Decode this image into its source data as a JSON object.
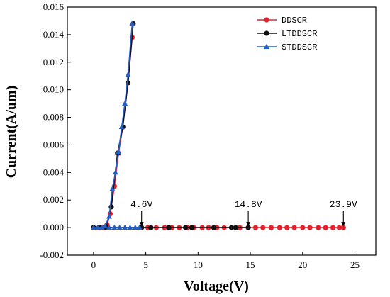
{
  "chart_data": {
    "type": "scatter",
    "xlabel": "Voltage(V)",
    "ylabel": "Current(A/um)",
    "xlim": [
      -2.5,
      27
    ],
    "ylim": [
      -0.002,
      0.016
    ],
    "xticks": [
      "0",
      "5",
      "10",
      "15",
      "20",
      "25"
    ],
    "yticks": [
      "-0.002",
      "0.000",
      "0.002",
      "0.004",
      "0.006",
      "0.008",
      "0.010",
      "0.012",
      "0.014",
      "0.016"
    ],
    "legend_position": "top-right",
    "grid": false,
    "series": [
      {
        "name": "DDSCR",
        "color": "#e8202a",
        "marker": "circle",
        "x": [
          0,
          0.5,
          1,
          1.3,
          1.6,
          2,
          2.4,
          2.8,
          3.3,
          3.7,
          4.6,
          5.2,
          6,
          6.8,
          7.5,
          8.2,
          9,
          9.6,
          10.4,
          11,
          11.8,
          12.5,
          13.2,
          14,
          14.8,
          15.5,
          16.2,
          17,
          17.8,
          18.5,
          19.2,
          20,
          20.7,
          21.5,
          22.2,
          22.9,
          23.5,
          23.9
        ],
        "y": [
          0,
          0,
          0,
          0.0002,
          0.001,
          0.003,
          0.0054,
          0.0073,
          0.0105,
          0.0138,
          0,
          0,
          0,
          0,
          0,
          0,
          0,
          0,
          0,
          0,
          0,
          0,
          0,
          0,
          0,
          0,
          0,
          0,
          0,
          0,
          0,
          0,
          0,
          0,
          0,
          0,
          0,
          0
        ]
      },
      {
        "name": "LTDDSCR",
        "color": "#111111",
        "marker": "circle",
        "x": [
          0,
          0.6,
          1.2,
          1.7,
          2.3,
          2.8,
          3.3,
          3.8,
          4.6,
          5.5,
          7.2,
          8.8,
          9.4,
          11.5,
          13.2,
          13.6,
          14.8
        ],
        "y": [
          0,
          0,
          0,
          0.0015,
          0.0054,
          0.0073,
          0.0105,
          0.0148,
          0,
          0,
          0,
          0,
          0,
          0,
          0,
          0,
          0
        ]
      },
      {
        "name": "STDDSCR",
        "color": "#1f5fc8",
        "marker": "triangle",
        "x": [
          0,
          0.4,
          0.8,
          1.1,
          1.5,
          1.8,
          2.1,
          2.4,
          2.7,
          3,
          3.3,
          3.7,
          1.5,
          2,
          2.5,
          3,
          3.5,
          4,
          4.4
        ],
        "y": [
          0,
          0,
          0,
          0.0001,
          0.0008,
          0.0028,
          0.004,
          0.0055,
          0.0073,
          0.009,
          0.0111,
          0.0148,
          0,
          0,
          0,
          0,
          0,
          0,
          0
        ]
      }
    ],
    "annotations": [
      {
        "text": "4.6V",
        "x": 4.6,
        "y": 0
      },
      {
        "text": "14.8V",
        "x": 14.8,
        "y": 0
      },
      {
        "text": "23.9V",
        "x": 23.9,
        "y": 0
      }
    ]
  }
}
